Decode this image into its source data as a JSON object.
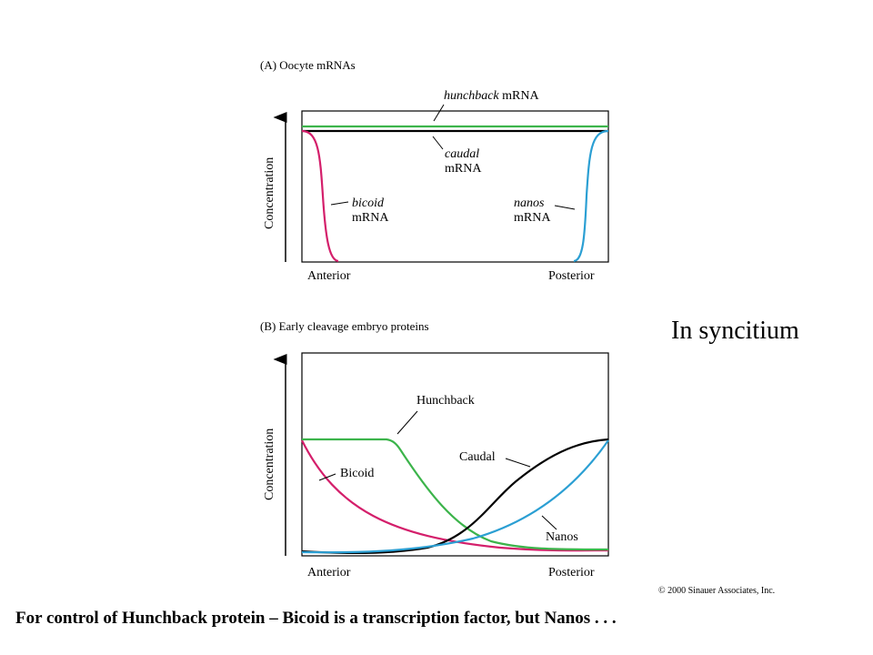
{
  "panel_a": {
    "title": "(A)  Oocyte mRNAs",
    "ylabel": "Concentration",
    "x_left": "Anterior",
    "x_right": "Posterior",
    "labels": {
      "hunchback_italic": "hunchback",
      "hunchback_rest": " mRNA",
      "caudal_italic": "caudal",
      "caudal_rest": "mRNA",
      "bicoid_italic": "bicoid",
      "bicoid_rest": "mRNA",
      "nanos_italic": "nanos",
      "nanos_rest": "mRNA"
    }
  },
  "panel_b": {
    "title": "(B)  Early cleavage embryo proteins",
    "ylabel": "Concentration",
    "x_left": "Anterior",
    "x_right": "Posterior",
    "labels": {
      "hunchback": "Hunchback",
      "caudal": "Caudal",
      "bicoid": "Bicoid",
      "nanos": "Nanos"
    }
  },
  "note": "In syncitium",
  "credit": "© 2000 Sinauer Associates, Inc.",
  "caption": "For control of Hunchback protein – Bicoid is a transcription factor, but Nanos . . .",
  "colors": {
    "hunchback": "#3cb44b",
    "caudal": "#000000",
    "bicoid": "#d41f6b",
    "nanos": "#2b9fd3"
  }
}
